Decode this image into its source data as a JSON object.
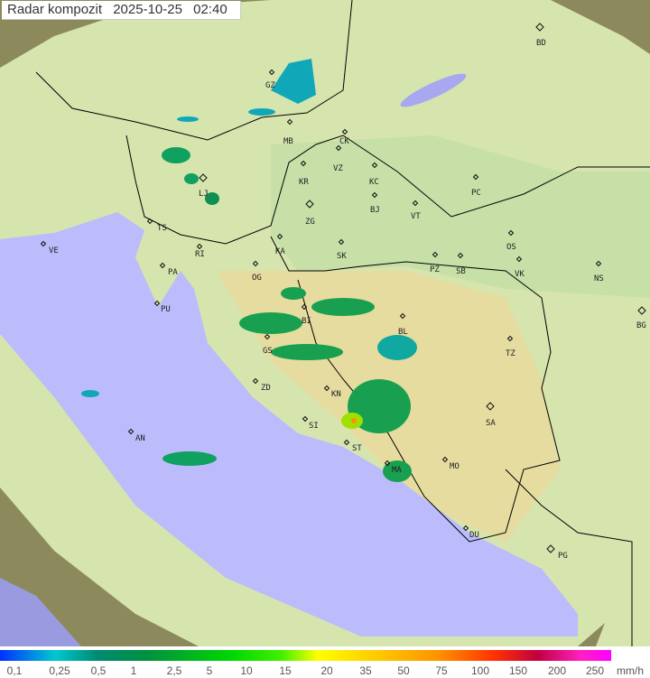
{
  "header": {
    "title": "Radar kompozit",
    "date": "2025-10-25",
    "time": "02:40"
  },
  "legend": {
    "unit": "mm/h",
    "ticks": [
      "0,1",
      "0,25",
      "0,5",
      "1",
      "2,5",
      "5",
      "10",
      "15",
      "20",
      "35",
      "50",
      "75",
      "100",
      "150",
      "200",
      "250"
    ],
    "colors": [
      "#0030ff",
      "#00c8d0",
      "#008a70",
      "#009040",
      "#00d800",
      "#ffff00",
      "#ff9000",
      "#ff3000",
      "#c00040",
      "#ff00ff"
    ]
  },
  "map": {
    "colors": {
      "sea": "#bcbcfc",
      "land": "#d8e6b0",
      "outside_coverage": "#8a8a5a",
      "border": "#000000",
      "coast": "#888888"
    },
    "cities": [
      "BD",
      "GZ",
      "MB",
      "CK",
      "VZ",
      "KR",
      "KC",
      "PC",
      "LJ",
      "ZG",
      "BJ",
      "VT",
      "TS",
      "VE",
      "RI",
      "KA",
      "SK",
      "OS",
      "PA",
      "OG",
      "PZ",
      "SB",
      "VK",
      "NS",
      "PU",
      "BI",
      "BL",
      "BG",
      "GS",
      "TZ",
      "ZD",
      "KN",
      "SA",
      "SI",
      "AN",
      "ST",
      "MO",
      "MA",
      "DU",
      "PG"
    ]
  }
}
